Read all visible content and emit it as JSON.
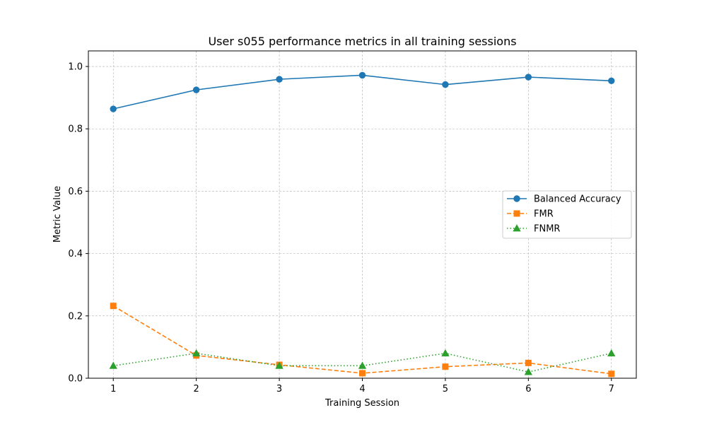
{
  "chart_data": {
    "type": "line",
    "title": "User s055 performance metrics in all training sessions",
    "xlabel": "Training Session",
    "ylabel": "Metric Value",
    "x": [
      1,
      2,
      3,
      4,
      5,
      6,
      7
    ],
    "x_tick_labels": [
      "1",
      "2",
      "3",
      "4",
      "5",
      "6",
      "7"
    ],
    "xlim": [
      0.7,
      7.3
    ],
    "ylim": [
      0.0,
      1.05
    ],
    "y_ticks": [
      0.0,
      0.2,
      0.4,
      0.6,
      0.8,
      1.0
    ],
    "y_tick_labels": [
      "0.0",
      "0.2",
      "0.4",
      "0.6",
      "0.8",
      "1.0"
    ],
    "grid": true,
    "legend_position": "center-right",
    "series": [
      {
        "name": "Balanced Accuracy",
        "values": [
          0.864,
          0.925,
          0.959,
          0.972,
          0.942,
          0.966,
          0.954
        ],
        "color": "#1f77b4",
        "marker": "circle",
        "line_style": "solid"
      },
      {
        "name": "FMR",
        "values": [
          0.232,
          0.073,
          0.043,
          0.016,
          0.037,
          0.049,
          0.014
        ],
        "color": "#ff7f0e",
        "marker": "square",
        "line_style": "dashed"
      },
      {
        "name": "FNMR",
        "values": [
          0.04,
          0.08,
          0.04,
          0.04,
          0.08,
          0.02,
          0.08
        ],
        "color": "#2ca02c",
        "marker": "triangle",
        "line_style": "dotted"
      }
    ]
  }
}
